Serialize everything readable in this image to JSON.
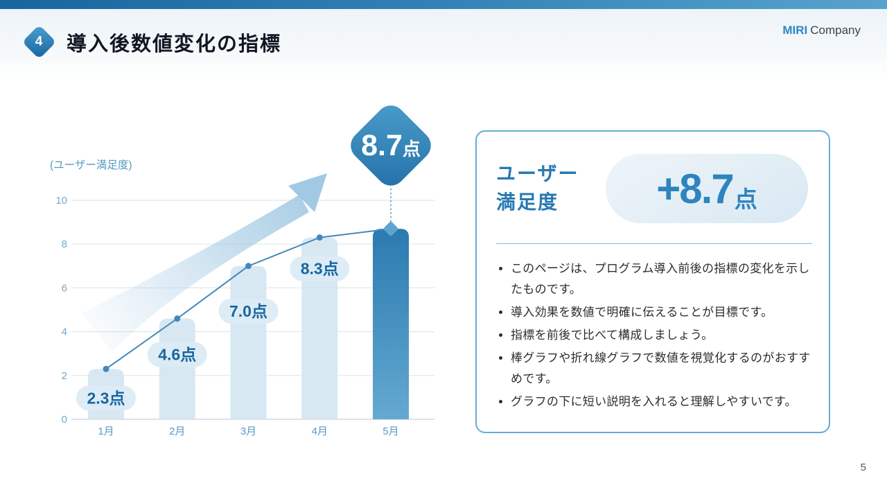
{
  "header": {
    "number": "4",
    "title": "導入後数値変化の指標",
    "logo": {
      "brand": "MIRI",
      "suffix": "Company"
    }
  },
  "chart_data": {
    "type": "bar",
    "title": "(ユーザー満足度)",
    "categories": [
      "1月",
      "2月",
      "3月",
      "4月",
      "5月"
    ],
    "values": [
      2.3,
      4.6,
      7.0,
      8.3,
      8.7
    ],
    "labels": [
      "2.3点",
      "4.6点",
      "7.0点",
      "8.3点"
    ],
    "callout": {
      "value": "8.7",
      "unit": "点"
    },
    "ylabel": "(ユーザー満足度)",
    "ylim": [
      0,
      10
    ],
    "yticks": [
      0,
      2,
      4,
      6,
      8,
      10
    ],
    "grid": true,
    "highlight_index": 4,
    "overlay_line": true,
    "colors": {
      "bar_light": "#d5e6f1",
      "bar_dark_top": "#2b7ab0",
      "bar_dark_bottom": "#64a9d1",
      "line": "#4288bc",
      "pill_bg": "#dcebf4",
      "pill_text": "#17669f",
      "axis_text": "#5898c3",
      "tick_text": "#74a9cc",
      "grid_line": "#e1e7ec",
      "base_line": "#c7d1d9",
      "callout_text": "#ffffff"
    }
  },
  "summary_card": {
    "metric_label_line1": "ユーザー",
    "metric_label_line2": "満足度",
    "badge": {
      "value": "+8.7",
      "unit": "点"
    },
    "bullets": [
      "このページは、プログラム導入前後の指標の変化を示したものです。",
      "導入効果を数値で明確に伝えることが目標です。",
      "指標を前後で比べて構成しましょう。",
      "棒グラフや折れ線グラフで数値を視覚化するのがおすすめです。",
      "グラフの下に短い説明を入れると理解しやすいです。"
    ]
  },
  "footer": {
    "page_number": "5"
  }
}
